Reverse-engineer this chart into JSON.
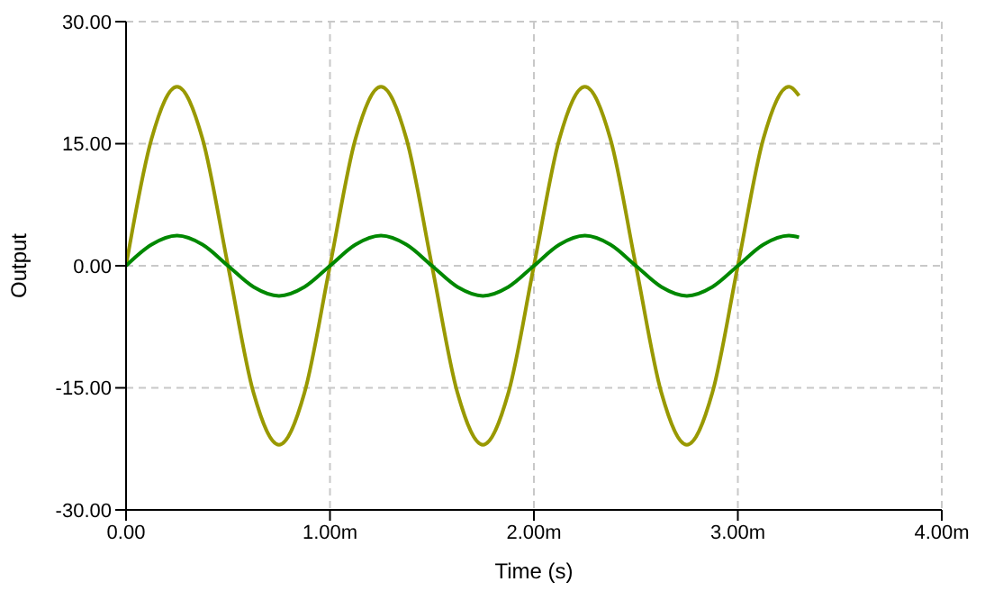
{
  "chart_data": {
    "type": "line",
    "xlabel": "Time (s)",
    "ylabel": "Output",
    "x": [
      0,
      0.125,
      0.25,
      0.375,
      0.5,
      0.625,
      0.75,
      0.875,
      1,
      1.125,
      1.25,
      1.375,
      1.5,
      1.625,
      1.75,
      1.875,
      2,
      2.125,
      2.25,
      2.375,
      2.5,
      2.625,
      2.75,
      2.875,
      3,
      3.125,
      3.25,
      3.3
    ],
    "series": [
      {
        "color": "#999900",
        "values": [
          0,
          15.6,
          22,
          15.6,
          0,
          -15.6,
          -22,
          -15.6,
          0,
          15.6,
          22,
          15.6,
          0,
          -15.6,
          -22,
          -15.6,
          0,
          15.6,
          22,
          15.6,
          0,
          -15.6,
          -22,
          -15.6,
          0,
          15.6,
          22,
          20.9
        ]
      },
      {
        "color": "#008800",
        "values": [
          0,
          2.6,
          3.7,
          2.6,
          0,
          -2.6,
          -3.7,
          -2.6,
          0,
          2.6,
          3.7,
          2.6,
          0,
          -2.6,
          -3.7,
          -2.6,
          0,
          2.6,
          3.7,
          2.6,
          0,
          -2.6,
          -3.7,
          -2.6,
          0,
          2.6,
          3.7,
          3.5
        ]
      }
    ],
    "xlim": [
      0,
      4
    ],
    "xticks": [
      {
        "value": 0,
        "label": "0.00"
      },
      {
        "value": 1,
        "label": "1.00m"
      },
      {
        "value": 2,
        "label": "2.00m"
      },
      {
        "value": 3,
        "label": "3.00m"
      },
      {
        "value": 4,
        "label": "4.00m"
      }
    ],
    "ylim": [
      -30,
      30
    ],
    "yticks": [
      {
        "value": -30,
        "label": "-30.00"
      },
      {
        "value": -15,
        "label": "-15.00"
      },
      {
        "value": 0,
        "label": "0.00"
      },
      {
        "value": 15,
        "label": "15.00"
      },
      {
        "value": 30,
        "label": "30.00"
      }
    ],
    "grid": true,
    "line_style": "solid",
    "marker": "none"
  }
}
